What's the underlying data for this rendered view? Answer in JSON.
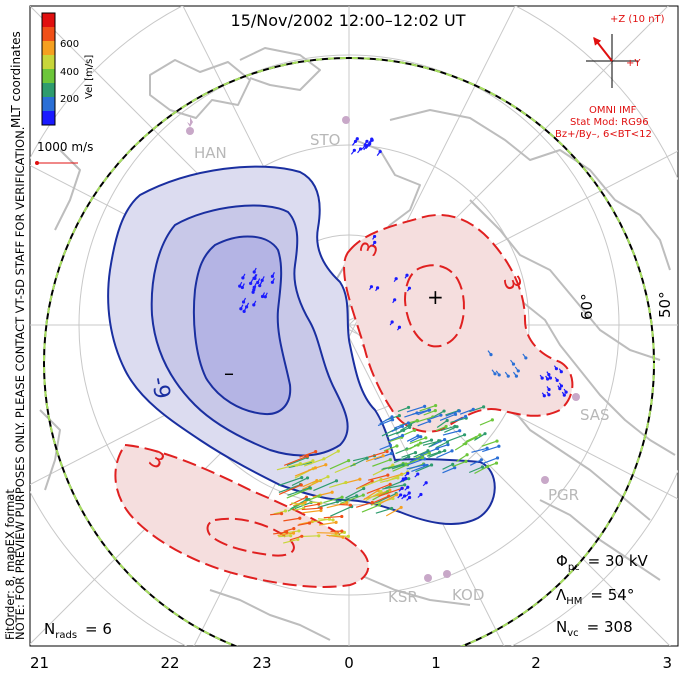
{
  "title": "15/Nov/2002 12:00–12:02 UT",
  "coordinates_label": "MLT coordinates",
  "colorbar": {
    "unit_label": "Vel [m/s]",
    "ticks": [
      "600",
      "400",
      "200"
    ],
    "colors": [
      "#1a1aff",
      "#2a6fd6",
      "#2e9c6e",
      "#6cc63a",
      "#c8d63a",
      "#f5a020",
      "#f05018",
      "#e01010"
    ]
  },
  "scale_vector_label": "1000 m/s",
  "imf": {
    "z_label": "+Z (10 nT)",
    "y_label": "+Y",
    "source_label": "OMNI IMF",
    "model_line1": "Stat Mod: RG96",
    "model_line2": "Bz+/By–, 6<BT<12"
  },
  "stations": [
    "HAN",
    "STO",
    "SAS",
    "PGR",
    "KSR",
    "KOD"
  ],
  "latitude_labels": [
    "60°",
    "50°"
  ],
  "contour_labels": [
    "-9",
    "3",
    "3",
    "3"
  ],
  "potential_markers": {
    "max": "+",
    "min": "–"
  },
  "mlt_ticks": [
    "21",
    "22",
    "23",
    "0",
    "1",
    "2",
    "3"
  ],
  "preview_note": "NOTE: FOR PREVIEW PURPOSES ONLY. PLEASE CONTACT VT-SD STAFF FOR VERIFICATION.",
  "fit_note": "FitOrder: 8, mapEX format",
  "stats": {
    "nrads_label": "N",
    "nrads_sub": "rads",
    "nrads_value": "= 6",
    "phi_label": "Φ",
    "phi_sub": "pc",
    "phi_value": "= 30 kV",
    "lambda_label": "Λ",
    "lambda_sub": "HM",
    "lambda_value": "= 54°",
    "nvc_label": "N",
    "nvc_sub": "vc",
    "nvc_value": "= 308"
  }
}
